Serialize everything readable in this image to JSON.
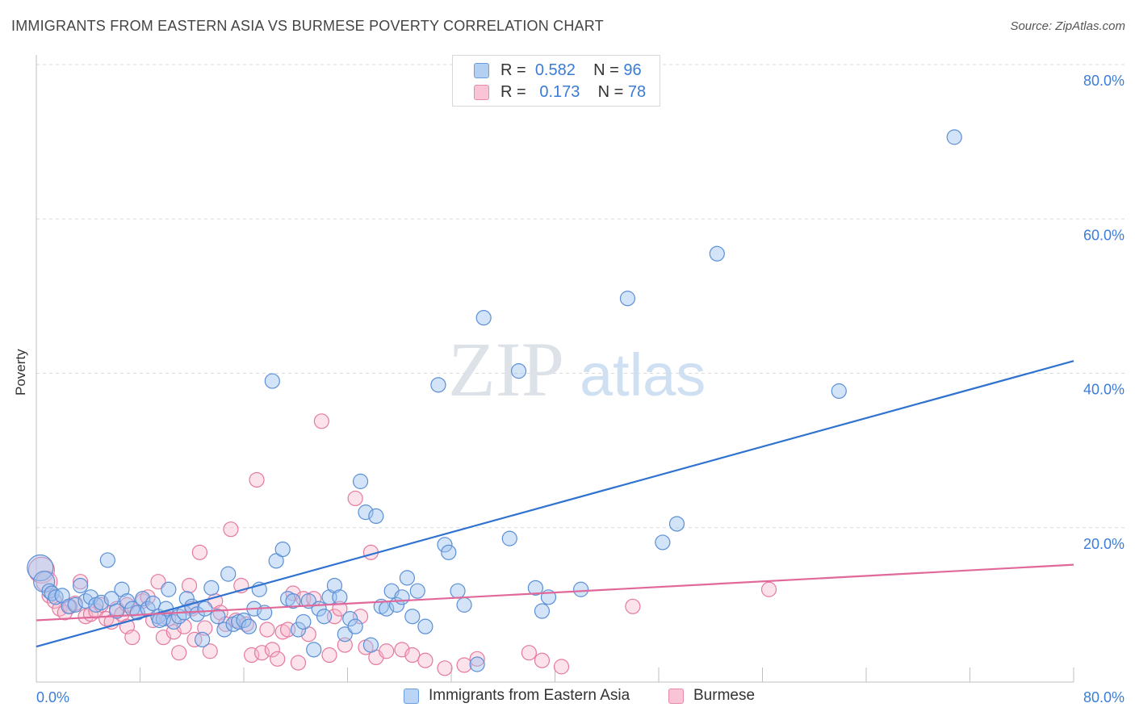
{
  "header": {
    "title": "IMMIGRANTS FROM EASTERN ASIA VS BURMESE POVERTY CORRELATION CHART",
    "source": "Source: ZipAtlas.com"
  },
  "watermark": {
    "zip": "ZIP",
    "atlas": "atlas"
  },
  "legend": {
    "rows": [
      {
        "r_label": "R =",
        "r_value": "0.582",
        "n_label": "N =",
        "n_value": "96",
        "color": "#9dc3f0",
        "stroke": "#5b8fd6"
      },
      {
        "r_label": "R =",
        "r_value": "0.173",
        "n_label": "N =",
        "n_value": "78",
        "color": "#f7b6cb",
        "stroke": "#e57aa0"
      }
    ]
  },
  "bottom_legend": [
    {
      "label": "Immigrants from Eastern Asia",
      "color": "#b9d4f5",
      "stroke": "#6a9ee0"
    },
    {
      "label": "Burmese",
      "color": "#f9c4d5",
      "stroke": "#e58aa9"
    }
  ],
  "chart_data": {
    "type": "scatter",
    "ylabel": "Poverty",
    "xlabel": "",
    "xlim": [
      0,
      80
    ],
    "ylim": [
      0,
      80
    ],
    "x_tick_labels": [
      "0.0%",
      "80.0%"
    ],
    "y_tick_labels": [
      "20.0%",
      "40.0%",
      "60.0%",
      "80.0%"
    ],
    "y_ticks": [
      20,
      40,
      60,
      80
    ],
    "grid": true,
    "legend_position": "top-center",
    "colors": {
      "blue": "#3b7dd8",
      "pink": "#e0699a",
      "tick_text": "#3b7dd8"
    },
    "series": [
      {
        "name": "Immigrants from Eastern Asia",
        "trend": {
          "x": [
            0,
            80
          ],
          "y": [
            4.6,
            41.6
          ]
        },
        "points": [
          [
            0.3,
            14.8
          ],
          [
            0.6,
            13.0
          ],
          [
            1.0,
            11.8
          ],
          [
            1.2,
            11.5
          ],
          [
            1.5,
            11.0
          ],
          [
            2.0,
            11.2
          ],
          [
            2.5,
            9.8
          ],
          [
            3.0,
            10.0
          ],
          [
            3.4,
            12.5
          ],
          [
            3.8,
            10.5
          ],
          [
            4.2,
            11.0
          ],
          [
            4.6,
            10.0
          ],
          [
            5.0,
            10.3
          ],
          [
            5.5,
            15.8
          ],
          [
            5.8,
            10.8
          ],
          [
            6.2,
            9.2
          ],
          [
            6.6,
            12.0
          ],
          [
            7.0,
            10.5
          ],
          [
            7.4,
            9.5
          ],
          [
            7.8,
            9.0
          ],
          [
            8.2,
            10.8
          ],
          [
            8.6,
            9.5
          ],
          [
            9.0,
            10.2
          ],
          [
            9.4,
            8.5
          ],
          [
            9.8,
            8.2
          ],
          [
            10.0,
            9.5
          ],
          [
            10.2,
            12.0
          ],
          [
            10.6,
            7.8
          ],
          [
            11.0,
            8.5
          ],
          [
            11.4,
            9.0
          ],
          [
            11.6,
            10.8
          ],
          [
            12.0,
            9.8
          ],
          [
            12.4,
            8.8
          ],
          [
            12.8,
            5.5
          ],
          [
            13.0,
            9.5
          ],
          [
            13.5,
            12.2
          ],
          [
            14.0,
            8.5
          ],
          [
            14.5,
            6.8
          ],
          [
            14.8,
            14.0
          ],
          [
            15.2,
            7.5
          ],
          [
            15.6,
            7.8
          ],
          [
            16.0,
            8.0
          ],
          [
            16.4,
            7.2
          ],
          [
            16.8,
            9.5
          ],
          [
            17.2,
            12.0
          ],
          [
            17.6,
            9.0
          ],
          [
            18.2,
            39.0
          ],
          [
            18.5,
            15.7
          ],
          [
            19.0,
            17.2
          ],
          [
            19.4,
            10.8
          ],
          [
            19.8,
            10.5
          ],
          [
            20.2,
            6.8
          ],
          [
            20.6,
            7.8
          ],
          [
            21.0,
            10.5
          ],
          [
            21.4,
            4.2
          ],
          [
            21.8,
            9.5
          ],
          [
            22.2,
            8.5
          ],
          [
            22.6,
            11.0
          ],
          [
            23.0,
            12.5
          ],
          [
            23.4,
            11.0
          ],
          [
            23.8,
            6.2
          ],
          [
            24.2,
            8.2
          ],
          [
            24.6,
            7.2
          ],
          [
            25.0,
            26.0
          ],
          [
            25.4,
            22.0
          ],
          [
            25.8,
            4.8
          ],
          [
            26.2,
            21.5
          ],
          [
            26.6,
            9.8
          ],
          [
            27.0,
            9.5
          ],
          [
            27.4,
            11.8
          ],
          [
            27.8,
            10.0
          ],
          [
            28.2,
            11.0
          ],
          [
            28.6,
            13.5
          ],
          [
            29.0,
            8.5
          ],
          [
            29.4,
            11.8
          ],
          [
            30.0,
            7.2
          ],
          [
            31.0,
            38.5
          ],
          [
            31.5,
            17.8
          ],
          [
            31.8,
            16.8
          ],
          [
            32.5,
            11.8
          ],
          [
            33.0,
            10.0
          ],
          [
            34.0,
            2.3
          ],
          [
            34.5,
            47.2
          ],
          [
            36.5,
            18.6
          ],
          [
            37.2,
            40.3
          ],
          [
            38.5,
            12.2
          ],
          [
            39.0,
            9.2
          ],
          [
            39.5,
            11.0
          ],
          [
            42.0,
            12.0
          ],
          [
            45.6,
            49.7
          ],
          [
            48.3,
            18.1
          ],
          [
            49.4,
            20.5
          ],
          [
            52.5,
            55.5
          ],
          [
            61.9,
            37.7
          ],
          [
            70.8,
            70.6
          ],
          [
            9.5,
            8.0
          ]
        ]
      },
      {
        "name": "Burmese",
        "trend": {
          "x": [
            0,
            80
          ],
          "y": [
            8.0,
            15.2
          ]
        },
        "points": [
          [
            0.4,
            14.5
          ],
          [
            0.8,
            13.0
          ],
          [
            1.0,
            11.2
          ],
          [
            1.4,
            10.5
          ],
          [
            1.8,
            9.5
          ],
          [
            2.2,
            9.0
          ],
          [
            2.6,
            9.8
          ],
          [
            3.0,
            10.2
          ],
          [
            3.4,
            13.0
          ],
          [
            3.8,
            8.5
          ],
          [
            4.2,
            8.8
          ],
          [
            4.6,
            9.2
          ],
          [
            5.0,
            10.0
          ],
          [
            5.4,
            8.2
          ],
          [
            5.8,
            7.8
          ],
          [
            6.2,
            9.5
          ],
          [
            6.6,
            8.8
          ],
          [
            7.0,
            7.2
          ],
          [
            7.4,
            5.8
          ],
          [
            7.8,
            9.0
          ],
          [
            8.2,
            10.5
          ],
          [
            8.6,
            11.0
          ],
          [
            9.0,
            8.0
          ],
          [
            9.4,
            13.0
          ],
          [
            9.8,
            5.8
          ],
          [
            10.2,
            8.2
          ],
          [
            10.6,
            6.5
          ],
          [
            11.0,
            3.8
          ],
          [
            11.4,
            7.2
          ],
          [
            11.8,
            12.5
          ],
          [
            12.2,
            5.5
          ],
          [
            12.6,
            16.8
          ],
          [
            13.0,
            7.0
          ],
          [
            13.4,
            4.0
          ],
          [
            13.8,
            10.5
          ],
          [
            14.2,
            9.0
          ],
          [
            14.6,
            7.5
          ],
          [
            15.0,
            19.8
          ],
          [
            15.4,
            8.0
          ],
          [
            15.8,
            12.5
          ],
          [
            16.2,
            7.5
          ],
          [
            16.6,
            3.5
          ],
          [
            17.0,
            26.2
          ],
          [
            17.4,
            3.8
          ],
          [
            17.8,
            6.8
          ],
          [
            18.2,
            4.2
          ],
          [
            18.6,
            3.0
          ],
          [
            19.0,
            6.5
          ],
          [
            19.4,
            6.8
          ],
          [
            19.8,
            11.5
          ],
          [
            20.2,
            2.5
          ],
          [
            20.6,
            10.8
          ],
          [
            21.0,
            6.2
          ],
          [
            21.4,
            10.8
          ],
          [
            22.0,
            33.8
          ],
          [
            22.6,
            3.5
          ],
          [
            23.0,
            8.5
          ],
          [
            23.4,
            9.5
          ],
          [
            23.8,
            4.8
          ],
          [
            24.6,
            23.8
          ],
          [
            25.0,
            8.5
          ],
          [
            25.4,
            4.5
          ],
          [
            25.8,
            16.8
          ],
          [
            26.2,
            3.2
          ],
          [
            27.0,
            4.0
          ],
          [
            28.2,
            4.2
          ],
          [
            29.0,
            3.5
          ],
          [
            30.0,
            2.8
          ],
          [
            31.5,
            1.8
          ],
          [
            33.0,
            2.2
          ],
          [
            34.0,
            3.0
          ],
          [
            38.0,
            3.8
          ],
          [
            39.0,
            2.8
          ],
          [
            40.5,
            2.0
          ],
          [
            46.0,
            9.8
          ],
          [
            56.5,
            12.0
          ],
          [
            12.0,
            9.5
          ],
          [
            7.0,
            10.0
          ]
        ]
      }
    ]
  }
}
